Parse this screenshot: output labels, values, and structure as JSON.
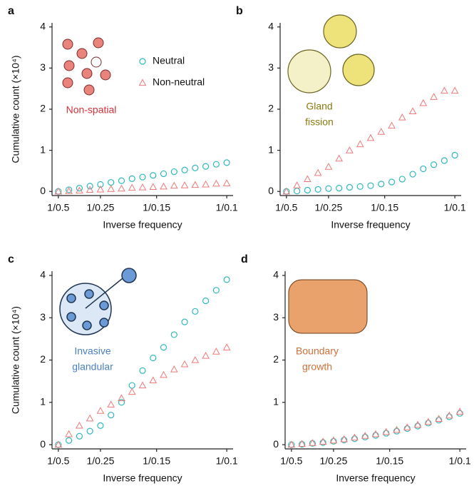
{
  "chart_data": [
    {
      "type": "scatter",
      "label": "a",
      "y_label": "Cumulative count (×10⁴)",
      "x_label": "Inverse frequency",
      "annotation": [
        "Non-spatial"
      ],
      "annotation_color": "#d1323a",
      "legend": true,
      "x": [
        2,
        2.5,
        3,
        3.5,
        4,
        4.5,
        5,
        5.5,
        6,
        6.5,
        7,
        7.5,
        8,
        8.5,
        9,
        9.5,
        10
      ],
      "series": [
        {
          "name": "Neutral",
          "marker": "circle",
          "color": "#2fb8bd",
          "values": [
            0,
            0.04,
            0.08,
            0.13,
            0.17,
            0.22,
            0.26,
            0.31,
            0.35,
            0.39,
            0.43,
            0.48,
            0.52,
            0.57,
            0.61,
            0.66,
            0.7
          ]
        },
        {
          "name": "Non-neutral",
          "marker": "triangle",
          "color": "#ee7a7a",
          "values": [
            0,
            0.01,
            0.02,
            0.04,
            0.05,
            0.06,
            0.07,
            0.09,
            0.1,
            0.11,
            0.12,
            0.14,
            0.15,
            0.16,
            0.17,
            0.19,
            0.2
          ]
        }
      ],
      "xlim": [
        1.7,
        10.3
      ],
      "ylim": [
        -0.1,
        4.1
      ],
      "xticks": [
        {
          "value": 2,
          "label": "1/0.5"
        },
        {
          "value": 4,
          "label": "1/0.25"
        },
        {
          "value": 6.667,
          "label": "1/0.15"
        },
        {
          "value": 10,
          "label": "1/0.1"
        }
      ],
      "yticks": [
        0,
        1,
        2,
        3,
        4
      ]
    },
    {
      "type": "scatter",
      "label": "b",
      "x_label": "Inverse frequency",
      "annotation": [
        "Gland",
        "fission"
      ],
      "annotation_color": "#8a7a10",
      "x": [
        2,
        2.5,
        3,
        3.5,
        4,
        4.5,
        5,
        5.5,
        6,
        6.5,
        7,
        7.5,
        8,
        8.5,
        9,
        9.5,
        10
      ],
      "series": [
        {
          "marker": "circle",
          "color": "#2fb8bd",
          "values": [
            0,
            0.01,
            0.03,
            0.05,
            0.07,
            0.08,
            0.1,
            0.12,
            0.14,
            0.18,
            0.23,
            0.3,
            0.42,
            0.55,
            0.65,
            0.75,
            0.88
          ]
        },
        {
          "marker": "triangle",
          "color": "#ee7a7a",
          "values": [
            0,
            0.15,
            0.3,
            0.45,
            0.6,
            0.8,
            1.0,
            1.15,
            1.3,
            1.45,
            1.6,
            1.8,
            1.95,
            2.15,
            2.3,
            2.45,
            2.45
          ]
        }
      ],
      "xlim": [
        1.7,
        10.3
      ],
      "ylim": [
        -0.1,
        4.1
      ],
      "xticks": [
        {
          "value": 2,
          "label": "1/0.5"
        },
        {
          "value": 4,
          "label": "1/0.25"
        },
        {
          "value": 6.667,
          "label": "1/0.15"
        },
        {
          "value": 10,
          "label": "1/0.1"
        }
      ],
      "yticks": [
        0,
        1,
        2,
        3,
        4
      ]
    },
    {
      "type": "scatter",
      "label": "c",
      "y_label": "Cumulative count (×10⁴)",
      "x_label": "Inverse frequency",
      "annotation": [
        "Invasive",
        "glandular"
      ],
      "annotation_color": "#4a7fc1",
      "x": [
        2,
        2.5,
        3,
        3.5,
        4,
        4.5,
        5,
        5.5,
        6,
        6.5,
        7,
        7.5,
        8,
        8.5,
        9,
        9.5,
        10
      ],
      "series": [
        {
          "marker": "circle",
          "color": "#2fb8bd",
          "values": [
            0,
            0.1,
            0.2,
            0.32,
            0.45,
            0.7,
            1.0,
            1.4,
            1.75,
            2.05,
            2.3,
            2.6,
            2.9,
            3.15,
            3.4,
            3.65,
            3.9
          ]
        },
        {
          "marker": "triangle",
          "color": "#ee7a7a",
          "values": [
            0,
            0.25,
            0.45,
            0.62,
            0.8,
            0.95,
            1.1,
            1.25,
            1.4,
            1.52,
            1.65,
            1.78,
            1.9,
            2.0,
            2.1,
            2.2,
            2.3
          ]
        }
      ],
      "xlim": [
        1.7,
        10.3
      ],
      "ylim": [
        -0.1,
        4.1
      ],
      "xticks": [
        {
          "value": 2,
          "label": "1/0.5"
        },
        {
          "value": 4,
          "label": "1/0.25"
        },
        {
          "value": 6.667,
          "label": "1/0.15"
        },
        {
          "value": 10,
          "label": "1/0.1"
        }
      ],
      "yticks": [
        0,
        1,
        2,
        3,
        4
      ]
    },
    {
      "type": "scatter",
      "label": "d",
      "x_label": "Inverse frequency",
      "annotation": [
        "Boundary",
        "growth"
      ],
      "annotation_color": "#d0703a",
      "x": [
        2,
        2.5,
        3,
        3.5,
        4,
        4.5,
        5,
        5.5,
        6,
        6.5,
        7,
        7.5,
        8,
        8.5,
        9,
        9.5,
        10
      ],
      "series": [
        {
          "marker": "circle",
          "color": "#2fb8bd",
          "values": [
            0,
            0.01,
            0.03,
            0.05,
            0.08,
            0.11,
            0.14,
            0.18,
            0.22,
            0.27,
            0.32,
            0.38,
            0.44,
            0.51,
            0.58,
            0.66,
            0.74
          ]
        },
        {
          "marker": "triangle",
          "color": "#ee7a7a",
          "values": [
            0,
            0.02,
            0.04,
            0.07,
            0.1,
            0.13,
            0.17,
            0.21,
            0.25,
            0.3,
            0.35,
            0.41,
            0.47,
            0.54,
            0.61,
            0.69,
            0.78
          ]
        }
      ],
      "xlim": [
        1.7,
        10.3
      ],
      "ylim": [
        -0.1,
        4.1
      ],
      "xticks": [
        {
          "value": 2,
          "label": "1/0.5"
        },
        {
          "value": 4,
          "label": "1/0.25"
        },
        {
          "value": 6.667,
          "label": "1/0.15"
        },
        {
          "value": 10,
          "label": "1/0.1"
        }
      ],
      "yticks": [
        0,
        1,
        2,
        3,
        4
      ]
    }
  ]
}
